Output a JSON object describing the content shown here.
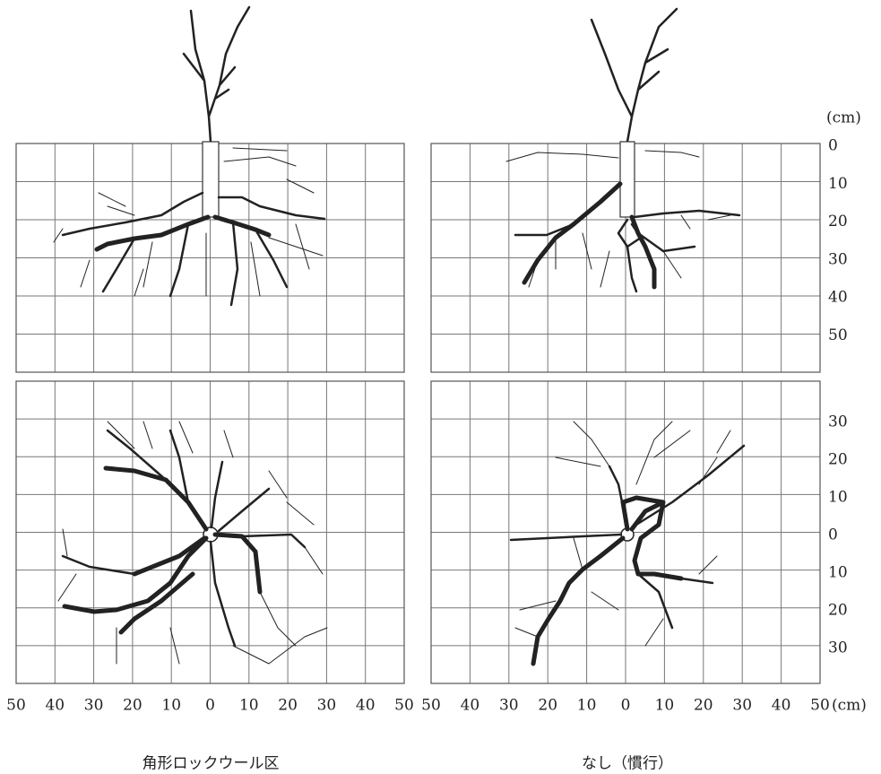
{
  "left_panel": {
    "caption": "角形ロックウール区"
  },
  "right_panel": {
    "caption": "なし（慣行）"
  },
  "y_unit": "(cm)",
  "x_unit": "(cm)",
  "x_axis": {
    "left_labels": [
      "50",
      "40",
      "30",
      "20",
      "10",
      "0",
      "10",
      "20",
      "30",
      "40",
      "50"
    ],
    "right_labels": [
      "50",
      "40",
      "30",
      "20",
      "10",
      "0",
      "10",
      "20",
      "30",
      "40",
      "50"
    ]
  },
  "y_axis": {
    "top_labels": [
      "0",
      "10",
      "20",
      "30",
      "40",
      "50"
    ],
    "bottom_labels": [
      "30",
      "20",
      "10",
      "0",
      "10",
      "20",
      "30"
    ]
  }
}
